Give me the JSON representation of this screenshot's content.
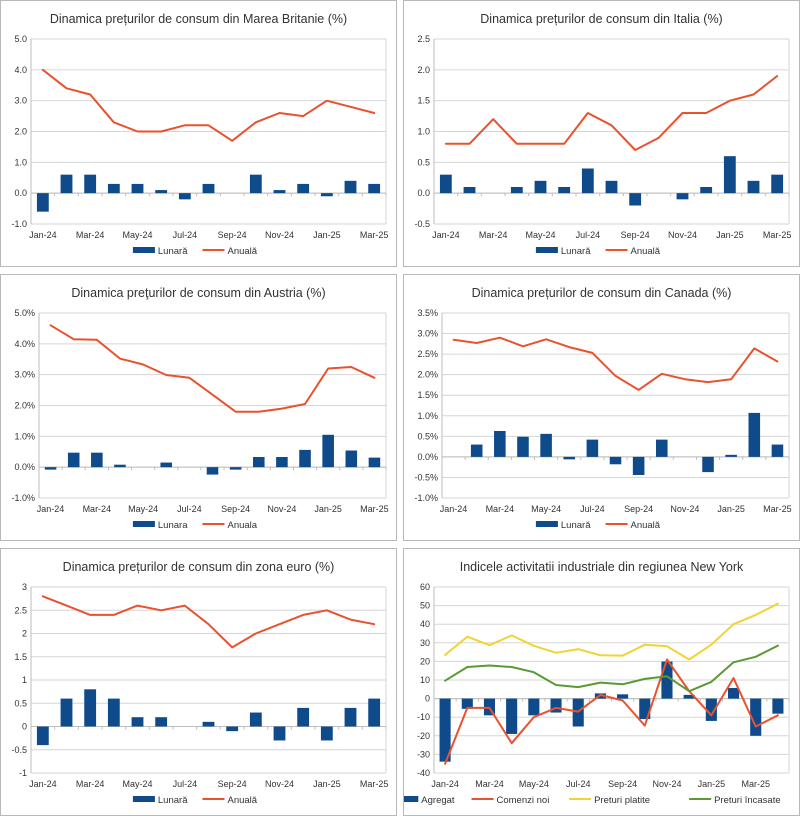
{
  "colors": {
    "bar": "#0f4a8a",
    "line_red": "#e8522d",
    "line_yellow": "#f2d235",
    "line_green": "#5a9a35",
    "grid": "#d6d6d6",
    "axis": "#bdbdbd"
  },
  "chart_data": [
    {
      "id": "uk",
      "type": "bar+line",
      "title": "Dinamica prețurilor de consum din Marea Britanie (%)",
      "categories": [
        "Jan-24",
        "Feb-24",
        "Mar-24",
        "Apr-24",
        "May-24",
        "Jun-24",
        "Jul-24",
        "Aug-24",
        "Sep-24",
        "Oct-24",
        "Nov-24",
        "Dec-24",
        "Jan-25",
        "Feb-25",
        "Mar-25"
      ],
      "x_tick_labels": [
        "Jan-24",
        "",
        "Mar-24",
        "",
        "May-24",
        "",
        "Jul-24",
        "",
        "Sep-24",
        "",
        "Nov-24",
        "",
        "Jan-25",
        "",
        "Mar-25"
      ],
      "ylim": [
        -1,
        5
      ],
      "y_ticks": [
        -1,
        0,
        1,
        2,
        3,
        4,
        5
      ],
      "y_tick_labels": [
        "-1.0",
        "0.0",
        "1.0",
        "2.0",
        "3.0",
        "4.0",
        "5.0"
      ],
      "grid": true,
      "legend_position": "bottom",
      "series": [
        {
          "name": "Lunară",
          "kind": "bar",
          "color_key": "bar",
          "values": [
            -0.6,
            0.6,
            0.6,
            0.3,
            0.3,
            0.1,
            -0.2,
            0.3,
            0.0,
            0.6,
            0.1,
            0.3,
            -0.1,
            0.4,
            0.3
          ]
        },
        {
          "name": "Anuală",
          "kind": "line",
          "color_key": "line_red",
          "values": [
            4.0,
            3.4,
            3.2,
            2.3,
            2.0,
            2.0,
            2.2,
            2.2,
            1.7,
            2.3,
            2.6,
            2.5,
            3.0,
            2.8,
            2.6
          ]
        }
      ]
    },
    {
      "id": "italy",
      "type": "bar+line",
      "title": "Dinamica prețurilor de consum din Italia (%)",
      "categories": [
        "Jan-24",
        "Feb-24",
        "Mar-24",
        "Apr-24",
        "May-24",
        "Jun-24",
        "Jul-24",
        "Aug-24",
        "Sep-24",
        "Oct-24",
        "Nov-24",
        "Dec-24",
        "Jan-25",
        "Feb-25",
        "Mar-25"
      ],
      "x_tick_labels": [
        "Jan-24",
        "",
        "Mar-24",
        "",
        "May-24",
        "",
        "Jul-24",
        "",
        "Sep-24",
        "",
        "Nov-24",
        "",
        "Jan-25",
        "",
        "Mar-25"
      ],
      "ylim": [
        -0.5,
        2.5
      ],
      "y_ticks": [
        -0.5,
        0,
        0.5,
        1,
        1.5,
        2,
        2.5
      ],
      "y_tick_labels": [
        "-0.5",
        "0.0",
        "0.5",
        "1.0",
        "1.5",
        "2.0",
        "2.5"
      ],
      "grid": true,
      "legend_position": "bottom",
      "series": [
        {
          "name": "Lunară",
          "kind": "bar",
          "color_key": "bar",
          "values": [
            0.3,
            0.1,
            0.0,
            0.1,
            0.2,
            0.1,
            0.4,
            0.2,
            -0.2,
            0.0,
            -0.1,
            0.1,
            0.6,
            0.2,
            0.3
          ]
        },
        {
          "name": "Anuală",
          "kind": "line",
          "color_key": "line_red",
          "values": [
            0.8,
            0.8,
            1.2,
            0.8,
            0.8,
            0.8,
            1.3,
            1.1,
            0.7,
            0.9,
            1.3,
            1.3,
            1.5,
            1.6,
            1.9
          ]
        }
      ]
    },
    {
      "id": "austria",
      "type": "bar+line",
      "title": "Dinamica preţurilor de consum din Austria (%)",
      "categories": [
        "Jan-24",
        "Feb-24",
        "Mar-24",
        "Apr-24",
        "May-24",
        "Jun-24",
        "Jul-24",
        "Aug-24",
        "Sep-24",
        "Oct-24",
        "Nov-24",
        "Dec-24",
        "Jan-25",
        "Feb-25",
        "Mar-25"
      ],
      "x_tick_labels": [
        "Jan-24",
        "",
        "Mar-24",
        "",
        "May-24",
        "",
        "Jul-24",
        "",
        "Sep-24",
        "",
        "Nov-24",
        "",
        "Jan-25",
        "",
        "Mar-25"
      ],
      "ylim": [
        -1,
        5
      ],
      "y_ticks": [
        -1,
        0,
        1,
        2,
        3,
        4,
        5
      ],
      "y_tick_labels": [
        "-1.0%",
        "0.0%",
        "1.0%",
        "2.0%",
        "3.0%",
        "4.0%",
        "5.0%"
      ],
      "grid": true,
      "legend_position": "bottom",
      "series": [
        {
          "name": "Lunara",
          "kind": "bar",
          "color_key": "bar",
          "values": [
            -0.08,
            0.47,
            0.47,
            0.08,
            0.0,
            0.15,
            0.0,
            -0.24,
            -0.08,
            0.33,
            0.33,
            0.56,
            1.05,
            0.54,
            0.31
          ]
        },
        {
          "name": "Anuala",
          "kind": "line",
          "color_key": "line_red",
          "values": [
            4.6,
            4.15,
            4.13,
            3.52,
            3.33,
            2.99,
            2.9,
            2.35,
            1.8,
            1.8,
            1.9,
            2.05,
            3.2,
            3.25,
            2.9
          ]
        }
      ]
    },
    {
      "id": "canada",
      "type": "bar+line",
      "title": "Dinamica prețurilor de consum din Canada (%)",
      "categories": [
        "Jan-24",
        "Feb-24",
        "Mar-24",
        "Apr-24",
        "May-24",
        "Jun-24",
        "Jul-24",
        "Aug-24",
        "Sep-24",
        "Oct-24",
        "Nov-24",
        "Dec-24",
        "Jan-25",
        "Feb-25",
        "Mar-25"
      ],
      "x_tick_labels": [
        "Jan-24",
        "",
        "Mar-24",
        "",
        "May-24",
        "",
        "Jul-24",
        "",
        "Sep-24",
        "",
        "Nov-24",
        "",
        "Jan-25",
        "",
        "Mar-25"
      ],
      "ylim": [
        -1,
        3.5
      ],
      "y_ticks": [
        -1,
        -0.5,
        0,
        0.5,
        1,
        1.5,
        2,
        2.5,
        3,
        3.5
      ],
      "y_tick_labels": [
        "-1.0%",
        "-0.5%",
        "0.0%",
        "0.5%",
        "1.0%",
        "1.5%",
        "2.0%",
        "2.5%",
        "3.0%",
        "3.5%"
      ],
      "grid": true,
      "legend_position": "bottom",
      "series": [
        {
          "name": "Lunară",
          "kind": "bar",
          "color_key": "bar",
          "values": [
            0.0,
            0.3,
            0.63,
            0.49,
            0.56,
            -0.06,
            0.42,
            -0.18,
            -0.44,
            0.42,
            0.0,
            -0.37,
            0.05,
            1.07,
            0.3
          ]
        },
        {
          "name": "Anuală",
          "kind": "line",
          "color_key": "line_red",
          "values": [
            2.85,
            2.77,
            2.9,
            2.69,
            2.86,
            2.67,
            2.53,
            1.97,
            1.63,
            2.02,
            1.89,
            1.82,
            1.89,
            2.64,
            2.32
          ]
        }
      ]
    },
    {
      "id": "euro",
      "type": "bar+line",
      "title": "Dinamica prețurilor de consum din zona euro (%)",
      "categories": [
        "Jan-24",
        "Feb-24",
        "Mar-24",
        "Apr-24",
        "May-24",
        "Jun-24",
        "Jul-24",
        "Aug-24",
        "Sep-24",
        "Oct-24",
        "Nov-24",
        "Dec-24",
        "Jan-25",
        "Feb-25",
        "Mar-25"
      ],
      "x_tick_labels": [
        "Jan-24",
        "",
        "Mar-24",
        "",
        "May-24",
        "",
        "Jul-24",
        "",
        "Sep-24",
        "",
        "Nov-24",
        "",
        "Jan-25",
        "",
        "Mar-25"
      ],
      "ylim": [
        -1,
        3
      ],
      "y_ticks": [
        -1,
        -0.5,
        0,
        0.5,
        1,
        1.5,
        2,
        2.5,
        3
      ],
      "y_tick_labels": [
        "-1",
        "-0.5",
        "0",
        "0.5",
        "1",
        "1.5",
        "2",
        "2.5",
        "3"
      ],
      "grid": true,
      "legend_position": "bottom",
      "series": [
        {
          "name": "Lunară",
          "kind": "bar",
          "color_key": "bar",
          "values": [
            -0.4,
            0.6,
            0.8,
            0.6,
            0.2,
            0.2,
            0.0,
            0.1,
            -0.1,
            0.3,
            -0.3,
            0.4,
            -0.3,
            0.4,
            0.6
          ]
        },
        {
          "name": "Anuală",
          "kind": "line",
          "color_key": "line_red",
          "values": [
            2.8,
            2.6,
            2.4,
            2.4,
            2.6,
            2.5,
            2.6,
            2.2,
            1.7,
            2.0,
            2.2,
            2.4,
            2.5,
            2.3,
            2.2
          ]
        }
      ]
    },
    {
      "id": "newyork",
      "type": "bar+line",
      "title": "Indicele activitatii industriale din regiunea New York",
      "categories": [
        "Jan-24",
        "Feb-24",
        "Mar-24",
        "Apr-24",
        "May-24",
        "Jun-24",
        "Jul-24",
        "Aug-24",
        "Sep-24",
        "Oct-24",
        "Nov-24",
        "Dec-24",
        "Jan-25",
        "Feb-25",
        "Mar-25",
        "Apr-25"
      ],
      "x_tick_labels": [
        "Jan-24",
        "",
        "Mar-24",
        "",
        "May-24",
        "",
        "Jul-24",
        "",
        "Sep-24",
        "",
        "Nov-24",
        "",
        "Jan-25",
        "",
        "Mar-25",
        ""
      ],
      "ylim": [
        -40,
        60
      ],
      "y_ticks": [
        -40,
        -30,
        -20,
        -10,
        0,
        10,
        20,
        30,
        40,
        50,
        60
      ],
      "y_tick_labels": [
        "-40",
        "-30",
        "-20",
        "-10",
        "0",
        "10",
        "20",
        "30",
        "40",
        "50",
        "60"
      ],
      "grid": true,
      "legend_position": "bottom",
      "series": [
        {
          "name": "Agregat",
          "kind": "bar",
          "color_key": "bar",
          "values": [
            -33.9,
            -5.5,
            -9.0,
            -19.0,
            -9.0,
            -7.5,
            -15.0,
            2.8,
            2.3,
            -11.0,
            19.9,
            2.0,
            -12.0,
            5.7,
            -20.0,
            -8.1
          ]
        },
        {
          "name": "Comenzi noi",
          "kind": "line",
          "color_key": "line_red",
          "values": [
            -35.0,
            -5.0,
            -5.0,
            -24.0,
            -10.0,
            -5.0,
            -7.0,
            2.0,
            -1.0,
            -14.5,
            21.0,
            4.0,
            -9.0,
            11.0,
            -15.0,
            -9.0
          ]
        },
        {
          "name": "Preturi platite",
          "kind": "line",
          "color_key": "line_yellow",
          "values": [
            23.5,
            33.3,
            28.7,
            34.0,
            28.4,
            24.6,
            26.6,
            23.3,
            23.1,
            29.0,
            28.1,
            21.0,
            29.0,
            40.0,
            45.0,
            51.0
          ]
        },
        {
          "name": "Preturi încasate",
          "kind": "line",
          "color_key": "line_green",
          "values": [
            9.6,
            17.0,
            17.8,
            17.0,
            14.2,
            7.3,
            6.2,
            8.6,
            7.7,
            10.6,
            12.0,
            4.0,
            9.0,
            19.5,
            22.5,
            28.5
          ]
        }
      ]
    }
  ]
}
